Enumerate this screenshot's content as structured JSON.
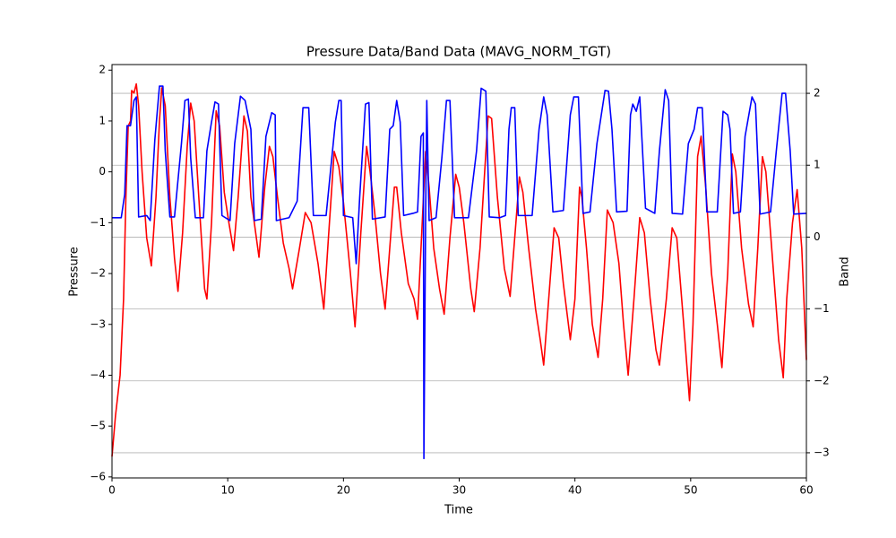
{
  "chart_data": {
    "type": "line",
    "title": "Pressure Data/Band Data (MAVG_NORM_TGT)",
    "xlabel": "Time",
    "ylabel": "Pressure",
    "y2label": "Band",
    "xlim": [
      0,
      60
    ],
    "xticks": [
      0,
      10,
      20,
      30,
      40,
      50,
      60
    ],
    "ylim": [
      -6.02,
      2.11
    ],
    "yticks": [
      {
        "value": -6,
        "label": "−6"
      },
      {
        "value": -5,
        "label": "−5"
      },
      {
        "value": -4,
        "label": "−4"
      },
      {
        "value": -3,
        "label": "−3"
      },
      {
        "value": -2,
        "label": "−2"
      },
      {
        "value": -1,
        "label": "−1"
      },
      0,
      1,
      2
    ],
    "y2lim": [
      -3.35,
      2.4
    ],
    "y2ticks": [
      {
        "value": -3,
        "label": "−3"
      },
      {
        "value": -2,
        "label": "−2"
      },
      {
        "value": -1,
        "label": "−1"
      },
      0,
      1,
      2
    ],
    "grid": "y2",
    "series": [
      {
        "color": "#ff0000",
        "axis": "y",
        "x": [
          0,
          0.3,
          0.7,
          1.0,
          1.2,
          1.4,
          1.6,
          1.7,
          1.9,
          2.1,
          2.3,
          2.6,
          3.0,
          3.4,
          3.8,
          4.1,
          4.3,
          4.6,
          5.0,
          5.4,
          5.7,
          6.1,
          6.5,
          6.8,
          7.1,
          7.5,
          8.0,
          8.2,
          8.6,
          9.0,
          9.3,
          9.7,
          10.1,
          10.5,
          10.9,
          11.4,
          11.7,
          12.0,
          12.7,
          13.2,
          13.6,
          13.9,
          14.3,
          14.8,
          15.3,
          15.6,
          16.2,
          16.7,
          17.2,
          17.8,
          18.3,
          18.7,
          19.2,
          19.6,
          20.0,
          20.6,
          21.0,
          21.5,
          22.0,
          22.3,
          22.7,
          23.2,
          23.6,
          24.0,
          24.4,
          24.6,
          25.0,
          25.6,
          26.1,
          26.4,
          26.7,
          27.1,
          27.4,
          27.8,
          28.3,
          28.7,
          29.2,
          29.7,
          30.0,
          30.4,
          31.0,
          31.3,
          31.8,
          32.2,
          32.5,
          32.8,
          33.3,
          33.9,
          34.4,
          34.9,
          35.2,
          35.5,
          36.0,
          36.6,
          37.0,
          37.3,
          37.8,
          38.2,
          38.6,
          39.0,
          39.6,
          40.0,
          40.4,
          40.6,
          41.0,
          41.5,
          42.0,
          42.4,
          42.8,
          43.3,
          43.8,
          44.2,
          44.6,
          45.1,
          45.6,
          46.0,
          46.5,
          47.0,
          47.3,
          47.9,
          48.4,
          48.8,
          49.4,
          49.9,
          50.2,
          50.6,
          50.9,
          51.3,
          51.8,
          52.3,
          52.7,
          53.2,
          53.6,
          53.9,
          54.4,
          55.0,
          55.4,
          55.8,
          56.2,
          56.5,
          57.0,
          57.6,
          58.0,
          58.3,
          58.8,
          59.2,
          59.6,
          60
        ],
        "values": [
          -5.6,
          -4.8,
          -4.0,
          -2.5,
          -0.5,
          0.9,
          1.0,
          1.6,
          1.55,
          1.73,
          1.3,
          0,
          -1.3,
          -1.85,
          -0.5,
          1.0,
          1.65,
          1.3,
          -0.5,
          -1.7,
          -2.35,
          -1.2,
          0.5,
          1.35,
          1.0,
          -0.5,
          -2.3,
          -2.5,
          -1.0,
          1.2,
          0.9,
          -0.4,
          -1.0,
          -1.55,
          -0.5,
          1.1,
          0.8,
          -0.5,
          -1.68,
          -0.3,
          0.5,
          0.3,
          -0.5,
          -1.4,
          -1.9,
          -2.3,
          -1.5,
          -0.8,
          -1.0,
          -1.8,
          -2.7,
          -1.3,
          0.4,
          0.1,
          -0.6,
          -2.0,
          -3.05,
          -1.2,
          0.5,
          0.0,
          -0.8,
          -2.0,
          -2.7,
          -1.5,
          -0.3,
          -0.3,
          -1.2,
          -2.2,
          -2.5,
          -2.9,
          -1.5,
          0.4,
          -0.3,
          -1.5,
          -2.3,
          -2.8,
          -1.3,
          -0.05,
          -0.3,
          -1.0,
          -2.3,
          -2.75,
          -1.5,
          0,
          1.1,
          1.05,
          -0.5,
          -1.9,
          -2.45,
          -1.0,
          -0.1,
          -0.4,
          -1.5,
          -2.7,
          -3.3,
          -3.8,
          -2.3,
          -1.1,
          -1.3,
          -2.2,
          -3.3,
          -2.5,
          -0.3,
          -0.5,
          -1.5,
          -3.0,
          -3.65,
          -2.5,
          -0.75,
          -1.0,
          -1.8,
          -3.0,
          -4.0,
          -2.5,
          -0.9,
          -1.2,
          -2.5,
          -3.5,
          -3.8,
          -2.5,
          -1.1,
          -1.3,
          -3.0,
          -4.5,
          -3.0,
          0.3,
          0.7,
          -0.3,
          -2.0,
          -3.0,
          -3.85,
          -2.0,
          0.35,
          0.0,
          -1.5,
          -2.6,
          -3.05,
          -1.5,
          0.3,
          0.0,
          -1.5,
          -3.3,
          -4.05,
          -2.5,
          -1.0,
          -0.35,
          -1.5,
          -3.7
        ]
      },
      {
        "color": "#0000ff",
        "axis": "y2",
        "x": [
          0,
          0.8,
          1.1,
          1.3,
          1.6,
          1.9,
          2.1,
          2.3,
          3.0,
          3.3,
          3.7,
          4.1,
          4.4,
          4.6,
          5.0,
          5.4,
          6.0,
          6.3,
          6.6,
          6.8,
          7.2,
          7.9,
          8.2,
          8.6,
          8.9,
          9.2,
          9.5,
          10.2,
          10.6,
          11.1,
          11.5,
          12.0,
          12.3,
          12.9,
          13.3,
          13.8,
          14.1,
          14.2,
          15.3,
          16.0,
          16.5,
          17.0,
          17.4,
          18.5,
          19.3,
          19.6,
          19.8,
          20.0,
          20.8,
          21.1,
          21.4,
          21.9,
          22.2,
          22.5,
          23.6,
          24.0,
          24.3,
          24.6,
          24.9,
          25.2,
          26.0,
          26.4,
          26.7,
          26.9,
          26.95,
          27.1,
          27.2,
          27.4,
          28.0,
          28.5,
          28.9,
          29.2,
          29.6,
          30.8,
          31.5,
          31.9,
          32.3,
          32.6,
          33.5,
          34.0,
          34.3,
          34.5,
          34.8,
          35.1,
          36.3,
          36.9,
          37.3,
          37.6,
          38.1,
          39.0,
          39.6,
          39.9,
          40.3,
          40.7,
          41.3,
          41.9,
          42.6,
          42.9,
          43.2,
          43.6,
          44.5,
          44.8,
          45.0,
          45.3,
          45.6,
          46.1,
          46.9,
          47.3,
          47.8,
          48.1,
          48.4,
          49.3,
          49.8,
          50.3,
          50.6,
          51.0,
          51.4,
          52.3,
          52.8,
          53.2,
          53.4,
          53.7,
          54.3,
          54.7,
          55.3,
          55.6,
          56.0,
          56.9,
          57.4,
          57.9,
          58.2,
          58.6,
          58.9,
          60
        ],
        "values": [
          0.27,
          0.27,
          0.6,
          1.55,
          1.55,
          1.9,
          1.95,
          0.28,
          0.3,
          0.23,
          1.35,
          2.1,
          2.1,
          1.2,
          0.28,
          0.28,
          1.3,
          1.9,
          1.92,
          1.1,
          0.27,
          0.27,
          1.2,
          1.6,
          1.88,
          1.85,
          0.3,
          0.23,
          1.3,
          1.96,
          1.9,
          1.5,
          0.23,
          0.25,
          1.4,
          1.73,
          1.7,
          0.23,
          0.27,
          0.5,
          1.8,
          1.8,
          0.3,
          0.3,
          1.6,
          1.9,
          1.9,
          0.3,
          0.27,
          -0.37,
          0.55,
          1.85,
          1.87,
          0.25,
          0.28,
          1.5,
          1.55,
          1.9,
          1.6,
          0.3,
          0.33,
          0.35,
          1.4,
          1.45,
          -3.08,
          0.3,
          1.9,
          0.23,
          0.27,
          1.1,
          1.9,
          1.9,
          0.27,
          0.27,
          1.2,
          2.07,
          2.03,
          0.28,
          0.27,
          0.3,
          1.5,
          1.8,
          1.8,
          0.3,
          0.3,
          1.5,
          1.95,
          1.7,
          0.35,
          0.37,
          1.7,
          1.95,
          1.95,
          0.33,
          0.35,
          1.3,
          2.04,
          2.03,
          1.5,
          0.35,
          0.36,
          1.7,
          1.85,
          1.75,
          1.95,
          0.4,
          0.33,
          1.2,
          2.05,
          1.9,
          0.33,
          0.32,
          1.3,
          1.5,
          1.8,
          1.8,
          0.35,
          0.35,
          1.75,
          1.7,
          1.5,
          0.33,
          0.35,
          1.4,
          1.95,
          1.85,
          0.32,
          0.35,
          1.2,
          2.0,
          2.0,
          1.2,
          0.32,
          0.33
        ]
      }
    ]
  }
}
